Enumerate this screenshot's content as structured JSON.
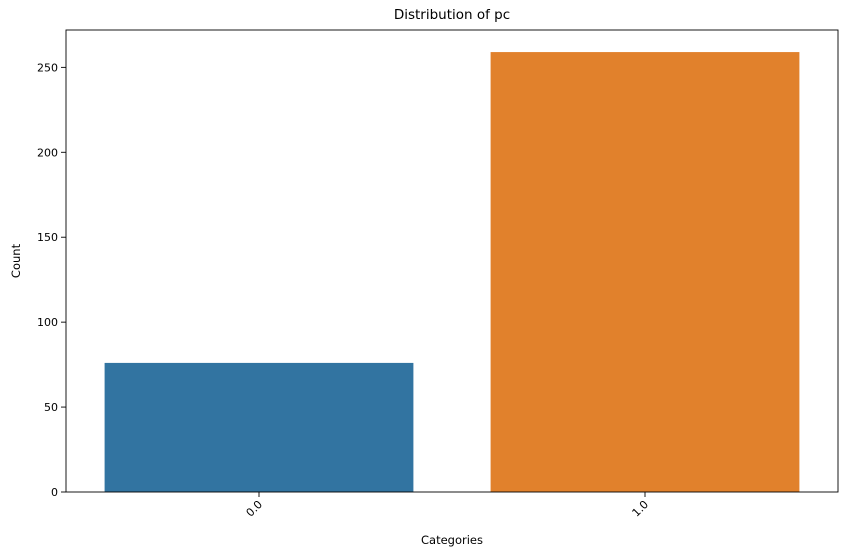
{
  "chart_data": {
    "type": "bar",
    "title": "Distribution of pc",
    "xlabel": "Categories",
    "ylabel": "Count",
    "categories": [
      "0.0",
      "1.0"
    ],
    "values": [
      76,
      259
    ],
    "colors": [
      "#3274a1",
      "#e1812c"
    ],
    "ylim": [
      0,
      272
    ],
    "yticks": [
      0,
      50,
      100,
      150,
      200,
      250
    ],
    "xtick_rotation_deg": 45,
    "grid": false,
    "legend": "none"
  }
}
